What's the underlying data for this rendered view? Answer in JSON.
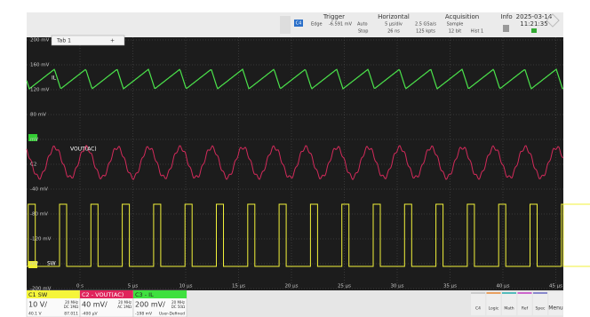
{
  "toolbar": {
    "trigger": {
      "title": "Trigger",
      "source": "C4",
      "mode": "Edge",
      "level": "-6.591 mV",
      "sweep": "Auto",
      "state": "Stop"
    },
    "horizontal": {
      "title": "Horizontal",
      "scale": "5 µs/div",
      "position": "26 ns",
      "rate": "2.5 GSa/s",
      "points": "125 kpts"
    },
    "acquisition": {
      "title": "Acquisition",
      "mode": "Sample",
      "bits": "12 bit",
      "hist": "Hist 1"
    },
    "info": "Info",
    "date": "2025-03-14",
    "time": "11:21:35"
  },
  "tab": {
    "label": "Tab 1",
    "add": "+"
  },
  "y_labels": [
    "200 mV",
    "160 mV",
    "120 mV",
    "80 mV",
    "mV",
    "C2",
    "-40 mV",
    "-80 mV",
    "-120 mV",
    "mV",
    "-200 mV"
  ],
  "x_labels": [
    "0 s",
    "5 µs",
    "10 µs",
    "15 µs",
    "20 µs",
    "25 µs",
    "30 µs",
    "35 µs",
    "40 µs",
    "45 µs"
  ],
  "traces": [
    "IL",
    "VOUT(AC)",
    "SW"
  ],
  "channels": [
    {
      "name": "C1  SW",
      "scale": "10 V/",
      "bw": "20 MHz",
      "coupling": "DC 1MΩ",
      "offset": "40.1 V",
      "extra": "87.011"
    },
    {
      "name": "C2 - VOUT(AC)",
      "scale": "40 mV/",
      "bw": "20 MHz",
      "coupling": "AC 1MΩ",
      "offset": "-400 µV"
    },
    {
      "name": "C3 - IL",
      "scale": "200 mV/",
      "bw": "20 MHz",
      "coupling": "DC 50Ω",
      "offset": "-198 mV",
      "extra": "User-Defined"
    }
  ],
  "buttons": [
    "C4",
    "Logic",
    "Math",
    "Ref",
    "Spec",
    "Menu"
  ]
}
